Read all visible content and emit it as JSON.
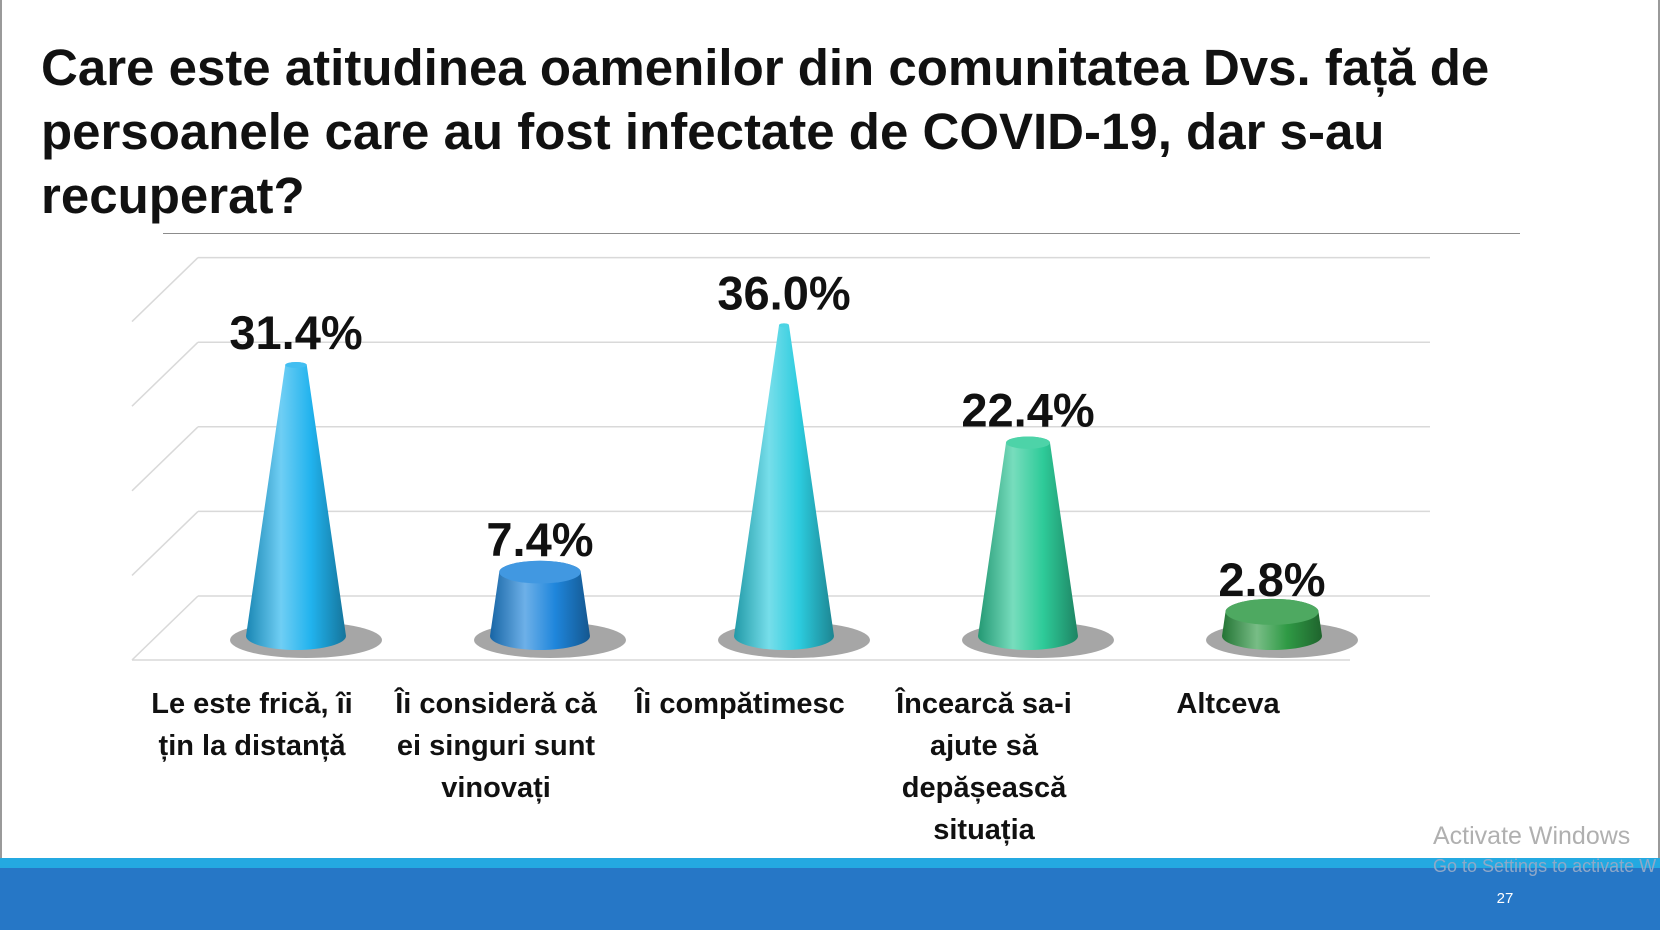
{
  "slide": {
    "title": "Care este atitudinea oamenilor din comunitatea Dvs. față de persoanele care au fost infectate de COVID-19, dar s-au recuperat?",
    "page_number": "27"
  },
  "watermark": {
    "title": "Activate Windows",
    "subtitle": "Go to Settings to activate W"
  },
  "chart_data": {
    "type": "bar",
    "shape": "3d-cone",
    "title": "",
    "xlabel": "",
    "ylabel": "",
    "ylim": [
      0,
      40
    ],
    "grid": true,
    "categories": [
      "Le este frică, îi țin la distanță",
      "Îi consideră că ei singuri sunt vinovați",
      "Îi compătimesc",
      "Încearcă sa-i ajute să depășească situația",
      "Altceva"
    ],
    "category_lines": [
      [
        "Le este frică, îi",
        "țin la distanță"
      ],
      [
        "Îi consideră că",
        "ei singuri sunt",
        "vinovați"
      ],
      [
        "Îi compătimesc"
      ],
      [
        "Încearcă sa-i",
        "ajute să",
        "depășească",
        "situația"
      ],
      [
        "Altceva"
      ]
    ],
    "values": [
      31.4,
      7.4,
      36.0,
      22.4,
      2.8
    ],
    "data_labels": [
      "31.4%",
      "7.4%",
      "36.0%",
      "22.4%",
      "2.8%"
    ],
    "colors": [
      "#21b3ee",
      "#1f86dc",
      "#2cccdf",
      "#2ecb99",
      "#2f9a45"
    ]
  }
}
